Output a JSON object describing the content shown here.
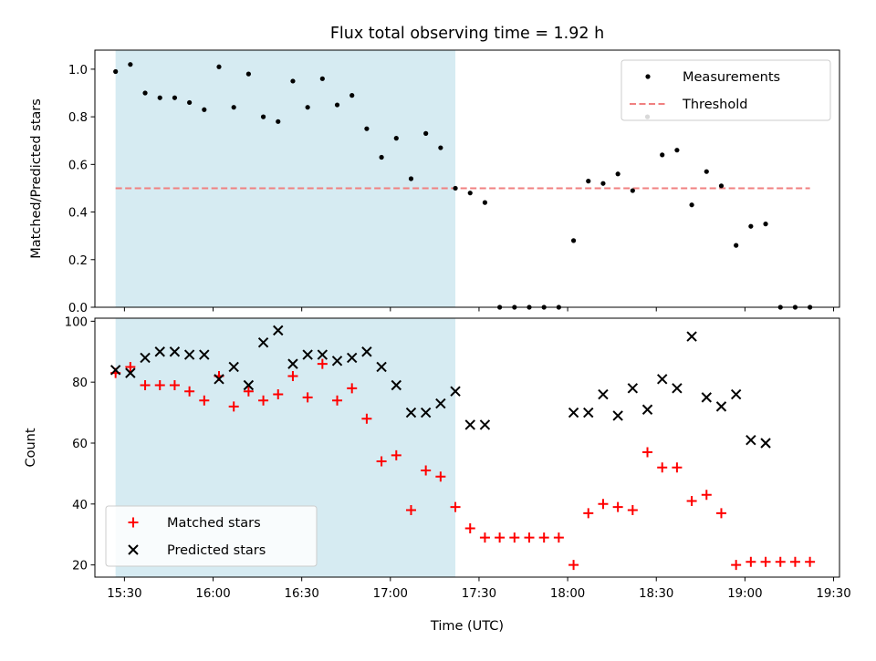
{
  "title": "Flux total observing time = 1.92 h",
  "colors": {
    "shade": "#add8e6",
    "threshold": "#f08080",
    "matched": "#ff0000",
    "predicted": "#000000",
    "measurement": "#000000"
  },
  "chart_data": [
    {
      "type": "scatter",
      "ylabel": "Matched/Predicted stars",
      "xlabel": "",
      "ylim": [
        0,
        1.08
      ],
      "yticks": [
        0.0,
        0.2,
        0.4,
        0.6,
        0.8,
        1.0
      ],
      "ytick_labels": [
        "0.0",
        "0.2",
        "0.4",
        "0.6",
        "0.8",
        "1.0"
      ],
      "x_range": [
        "15:20",
        "19:32"
      ],
      "shaded_interval": [
        "15:27",
        "17:22"
      ],
      "legend": {
        "position": "top-right",
        "entries": [
          "Measurements",
          "Threshold"
        ]
      },
      "threshold": {
        "name": "Threshold",
        "value": 0.5,
        "x_start": "15:27",
        "x_end": "19:22"
      },
      "series": [
        {
          "name": "Measurements",
          "x": [
            "15:27",
            "15:32",
            "15:37",
            "15:42",
            "15:47",
            "15:52",
            "15:57",
            "16:02",
            "16:07",
            "16:12",
            "16:17",
            "16:22",
            "16:27",
            "16:32",
            "16:37",
            "16:42",
            "16:47",
            "16:52",
            "16:57",
            "17:02",
            "17:07",
            "17:12",
            "17:17",
            "17:22",
            "17:27",
            "17:32",
            "17:37",
            "17:42",
            "17:47",
            "17:52",
            "17:57",
            "18:02",
            "18:07",
            "18:12",
            "18:17",
            "18:22",
            "18:27",
            "18:32",
            "18:37",
            "18:42",
            "18:47",
            "18:52",
            "18:57",
            "19:02",
            "19:07",
            "19:12",
            "19:17",
            "19:22"
          ],
          "y": [
            0.99,
            1.02,
            0.9,
            0.88,
            0.88,
            0.86,
            0.83,
            1.01,
            0.84,
            0.98,
            0.8,
            0.78,
            0.95,
            0.84,
            0.96,
            0.85,
            0.89,
            0.75,
            0.63,
            0.71,
            0.54,
            0.73,
            0.67,
            0.5,
            0.48,
            0.44,
            0.0,
            0.0,
            0.0,
            0.0,
            0.0,
            0.28,
            0.53,
            0.52,
            0.56,
            0.49,
            0.8,
            0.64,
            0.66,
            0.43,
            0.57,
            0.51,
            0.26,
            0.34,
            0.35,
            0.0,
            0.0,
            0.0
          ]
        }
      ]
    },
    {
      "type": "scatter",
      "xlabel": "Time (UTC)",
      "ylabel": "Count",
      "ylim": [
        16,
        101
      ],
      "yticks": [
        20,
        40,
        60,
        80,
        100
      ],
      "ytick_labels": [
        "20",
        "40",
        "60",
        "80",
        "100"
      ],
      "x_range": [
        "15:20",
        "19:32"
      ],
      "xticks": [
        "15:30",
        "16:00",
        "16:30",
        "17:00",
        "17:30",
        "18:00",
        "18:30",
        "19:00",
        "19:30"
      ],
      "shaded_interval": [
        "15:27",
        "17:22"
      ],
      "legend": {
        "position": "bottom-left",
        "entries": [
          "Matched stars",
          "Predicted stars"
        ]
      },
      "series": [
        {
          "name": "Matched stars",
          "marker": "plus",
          "x": [
            "15:27",
            "15:32",
            "15:37",
            "15:42",
            "15:47",
            "15:52",
            "15:57",
            "16:02",
            "16:07",
            "16:12",
            "16:17",
            "16:22",
            "16:27",
            "16:32",
            "16:37",
            "16:42",
            "16:47",
            "16:52",
            "16:57",
            "17:02",
            "17:07",
            "17:12",
            "17:17",
            "17:22",
            "17:27",
            "17:32",
            "17:37",
            "17:42",
            "17:47",
            "17:52",
            "17:57",
            "18:02",
            "18:07",
            "18:12",
            "18:17",
            "18:22",
            "18:27",
            "18:32",
            "18:37",
            "18:42",
            "18:47",
            "18:52",
            "18:57",
            "19:02",
            "19:07",
            "19:12",
            "19:17",
            "19:22"
          ],
          "y": [
            83,
            85,
            79,
            79,
            79,
            77,
            74,
            82,
            72,
            77,
            74,
            76,
            82,
            75,
            86,
            74,
            78,
            68,
            54,
            56,
            38,
            51,
            49,
            39,
            32,
            29,
            29,
            29,
            29,
            29,
            29,
            20,
            37,
            40,
            39,
            38,
            57,
            52,
            52,
            41,
            43,
            37,
            20,
            21,
            21,
            21,
            21,
            21
          ]
        },
        {
          "name": "Predicted stars",
          "marker": "cross",
          "x": [
            "15:27",
            "15:32",
            "15:37",
            "15:42",
            "15:47",
            "15:52",
            "15:57",
            "16:02",
            "16:07",
            "16:12",
            "16:17",
            "16:22",
            "16:27",
            "16:32",
            "16:37",
            "16:42",
            "16:47",
            "16:52",
            "16:57",
            "17:02",
            "17:07",
            "17:12",
            "17:17",
            "17:22",
            "17:27",
            "17:32",
            "18:02",
            "18:07",
            "18:12",
            "18:17",
            "18:22",
            "18:27",
            "18:32",
            "18:37",
            "18:42",
            "18:47",
            "18:52",
            "18:57",
            "19:02",
            "19:07"
          ],
          "y": [
            84,
            83,
            88,
            90,
            90,
            89,
            89,
            81,
            85,
            79,
            93,
            97,
            86,
            89,
            89,
            87,
            88,
            90,
            85,
            79,
            70,
            70,
            73,
            77,
            66,
            66,
            70,
            70,
            76,
            69,
            78,
            71,
            81,
            78,
            95,
            75,
            72,
            76,
            61,
            60
          ]
        }
      ]
    }
  ]
}
